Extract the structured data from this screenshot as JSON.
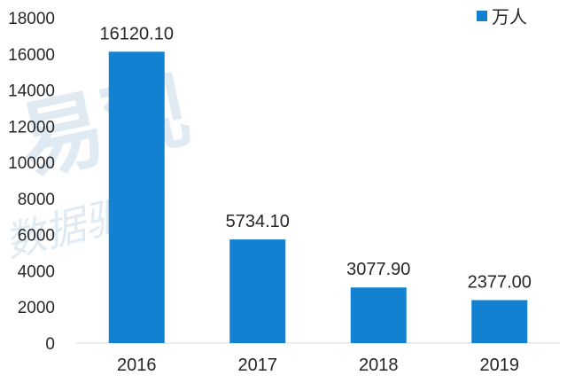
{
  "chart_data": {
    "type": "bar",
    "categories": [
      "2016",
      "2017",
      "2018",
      "2019"
    ],
    "series": [
      {
        "name": "万人",
        "values": [
          16120.1,
          5734.1,
          3077.9,
          2377.0
        ],
        "color": "#1281d1"
      }
    ],
    "data_labels": [
      "16120.10",
      "5734.10",
      "3077.90",
      "2377.00"
    ],
    "ylim": [
      0,
      18000
    ],
    "yticks": [
      0,
      2000,
      4000,
      6000,
      8000,
      10000,
      12000,
      14000,
      16000,
      18000
    ],
    "grid": false,
    "legend_position": "top-right",
    "title": "",
    "xlabel": "",
    "ylabel": ""
  },
  "watermark": {
    "line1": "易观",
    "line2": "数据驱动"
  }
}
